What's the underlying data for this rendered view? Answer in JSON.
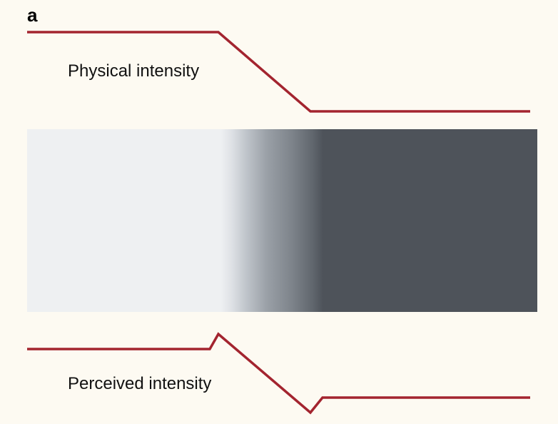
{
  "panel": {
    "label": "a"
  },
  "physical": {
    "label": "Physical intensity"
  },
  "perceived": {
    "label": "Perceived intensity"
  },
  "colors": {
    "background": "#fdfaf2",
    "curve": "#a3242f",
    "light_gray": "#eef0f2",
    "dark_gray": "#4e535a"
  }
}
